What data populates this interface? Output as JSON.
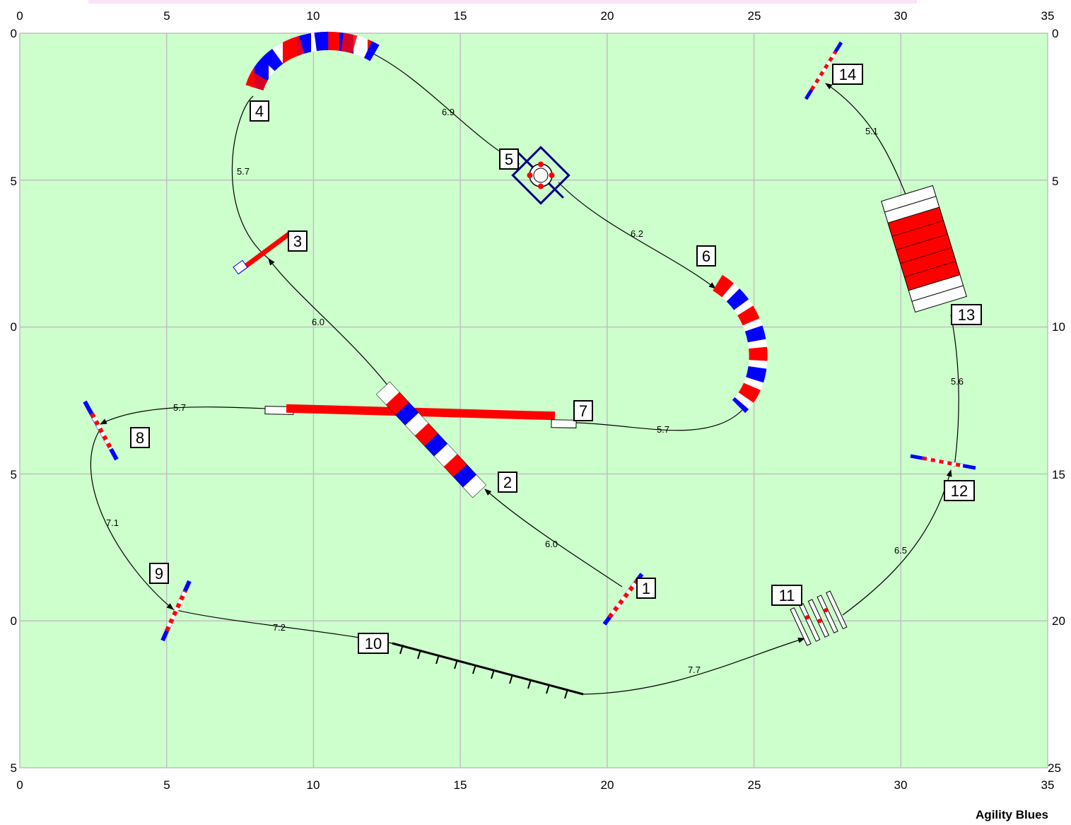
{
  "credit": "Agility Blues",
  "colors": {
    "field": "#ccffcc",
    "grid": "#c0c0c0",
    "path": "#000000",
    "red": "#ff0000",
    "blue": "#0000ff",
    "white": "#ffffff"
  },
  "axes": {
    "x_range": [
      0,
      35
    ],
    "y_range": [
      0,
      25
    ],
    "x_ticks": [
      "0",
      "5",
      "10",
      "15",
      "20",
      "25",
      "30",
      "35"
    ],
    "y_ticks": [
      "0",
      "5",
      "10",
      "15",
      "20",
      "25"
    ],
    "y_ticks_left": [
      "0",
      "5",
      "0",
      "5",
      "0",
      "5"
    ]
  },
  "obstacles": [
    {
      "number": "1",
      "type": "jump"
    },
    {
      "number": "2",
      "type": "tunnel"
    },
    {
      "number": "3",
      "type": "jump"
    },
    {
      "number": "4",
      "type": "tunnel"
    },
    {
      "number": "5",
      "type": "tire"
    },
    {
      "number": "6",
      "type": "tunnel"
    },
    {
      "number": "7",
      "type": "dog-walk"
    },
    {
      "number": "8",
      "type": "jump"
    },
    {
      "number": "9",
      "type": "jump"
    },
    {
      "number": "10",
      "type": "weave-poles"
    },
    {
      "number": "11",
      "type": "broad-jump"
    },
    {
      "number": "12",
      "type": "jump"
    },
    {
      "number": "13",
      "type": "a-frame"
    },
    {
      "number": "14",
      "type": "jump"
    }
  ],
  "path_distances": [
    "6.0",
    "6.0",
    "5.7",
    "6.9",
    "6.2",
    "5.7",
    "5.7",
    "7.1",
    "7.2",
    "7.7",
    "6.5",
    "5.6",
    "5.1"
  ]
}
